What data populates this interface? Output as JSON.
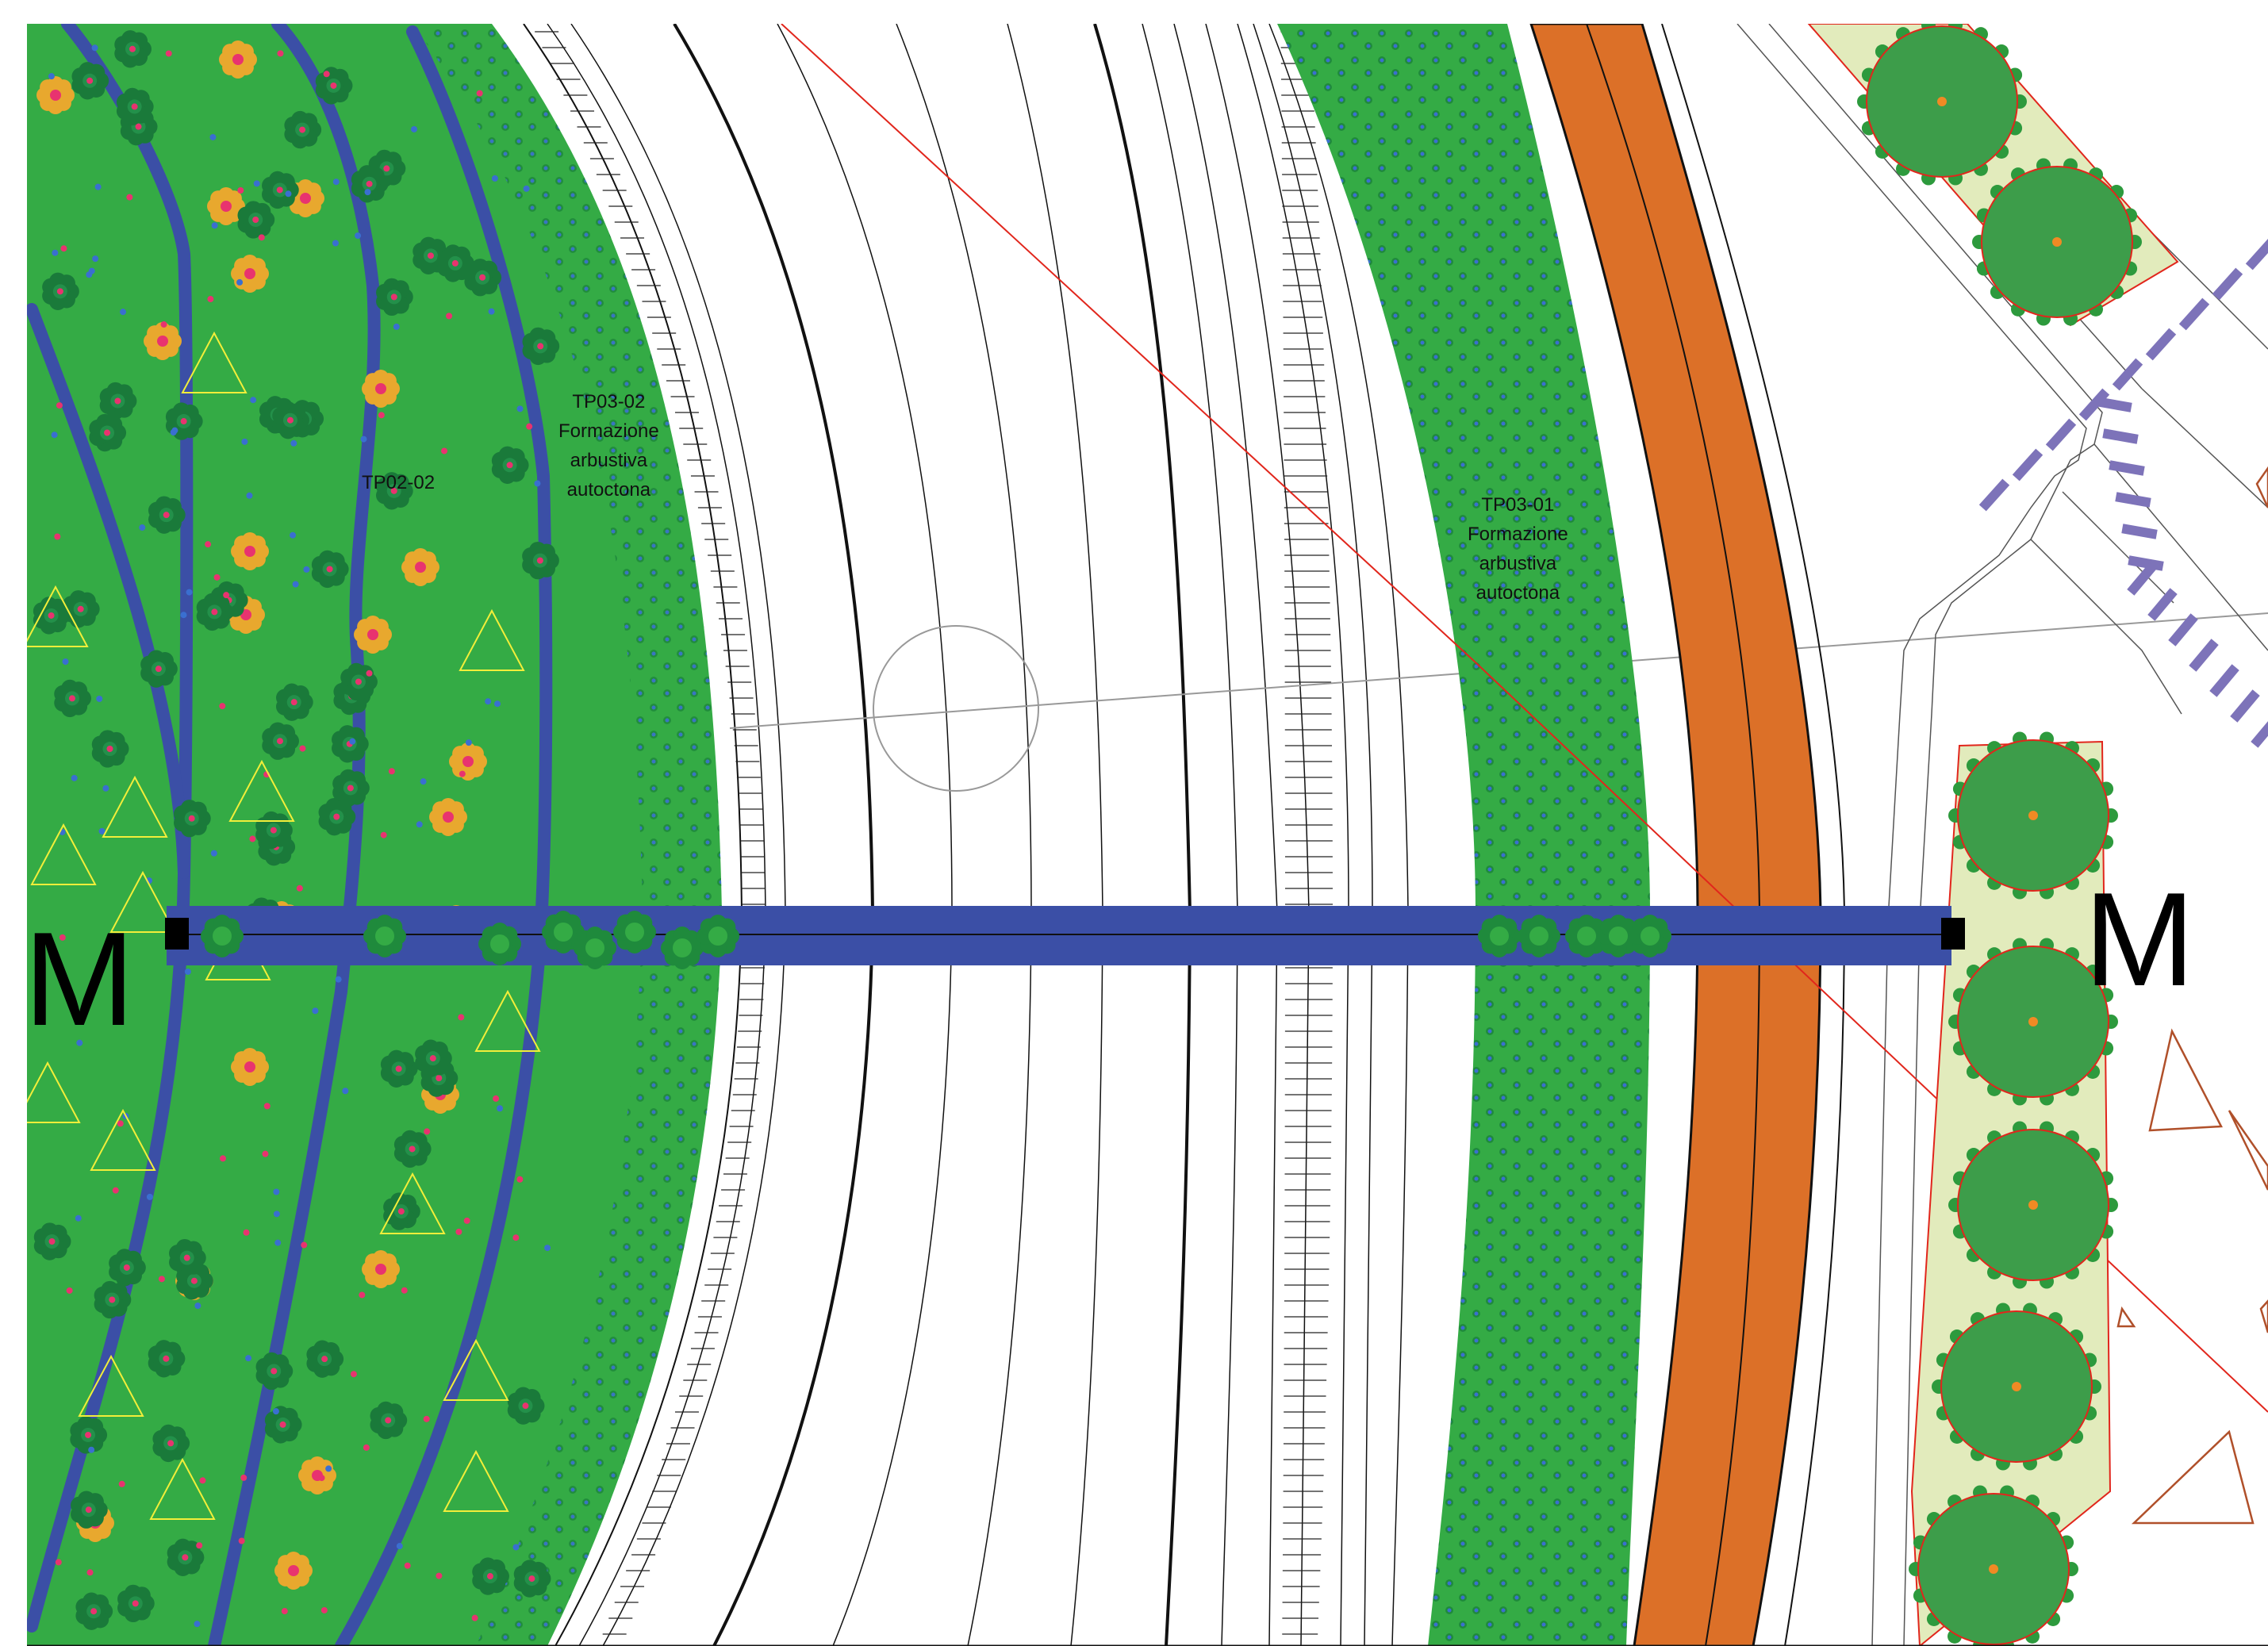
{
  "labels": {
    "tp02_02": "TP02-02",
    "tp03_02": [
      "TP03-02",
      "Formazione",
      "arbustiva",
      "autoctona"
    ],
    "tp03_01": [
      "TP03-01",
      "Formazione",
      "arbustiva",
      "autoctona"
    ]
  },
  "section_marks": {
    "left": "M",
    "right": "M"
  },
  "colors": {
    "meadow_green": "#34ab45",
    "shrub_dark_green": "#1f8a3c",
    "path_blue": "#3b4fa6",
    "rust_orange": "#dc7028",
    "tree_bed": "#e2ebbc",
    "tree_crown": "#3d9d4a",
    "flower_orange": "#e8a82e",
    "flower_pink": "#e8336f",
    "dot_blue": "#3a6fd0",
    "triangle_yellow": "#f2ee3a",
    "triangle_brown": "#b0502a",
    "survey_red": "#e1261c",
    "crosswalk_purple": "#7d73b9"
  },
  "icons": [
    "section-marker-icon",
    "tree-icon",
    "flower-shrub-icon",
    "triangle-symbol-icon"
  ]
}
